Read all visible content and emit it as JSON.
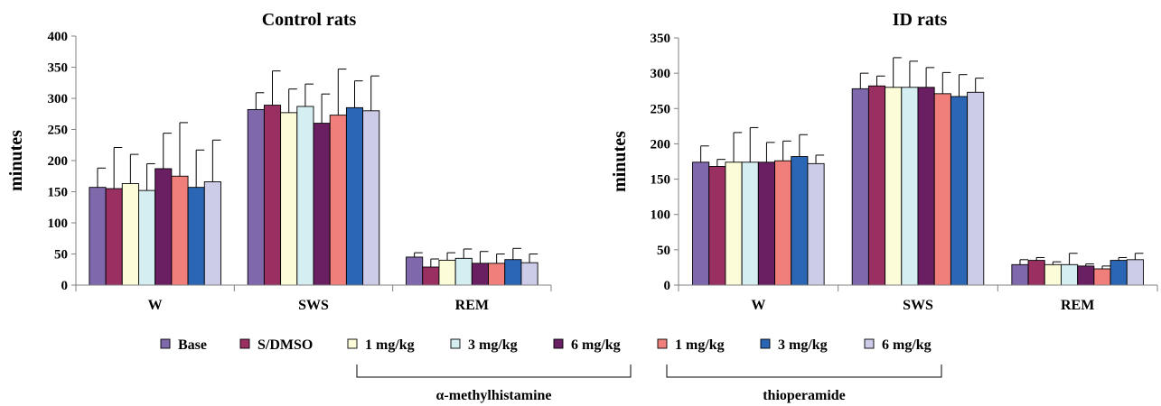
{
  "series_colors": [
    "#8068ac",
    "#9a2f62",
    "#fcfcd8",
    "#d5eef2",
    "#6a1f62",
    "#f07f7c",
    "#2a66b4",
    "#cccbe8"
  ],
  "legend": {
    "items": [
      "Base",
      "S/DMSO",
      "1 mg/kg",
      "3 mg/kg",
      "6 mg/kg",
      "1 mg/kg",
      "3 mg/kg",
      "6 mg/kg"
    ],
    "groups": [
      {
        "label": "α-methylhistamine",
        "from": 2,
        "to": 4
      },
      {
        "label": "thioperamide",
        "from": 5,
        "to": 7
      }
    ]
  },
  "chart_data": [
    {
      "type": "bar",
      "title": "Control rats",
      "ylabel": "minutes",
      "categories": [
        "W",
        "SWS",
        "REM"
      ],
      "ylim": [
        0,
        400
      ],
      "yticks": [
        0,
        50,
        100,
        150,
        200,
        250,
        300,
        350,
        400
      ],
      "series": [
        {
          "name": "Base",
          "values": [
            157,
            282,
            45
          ],
          "errors": [
            31,
            27,
            7
          ]
        },
        {
          "name": "S/DMSO",
          "values": [
            155,
            289,
            29
          ],
          "errors": [
            66,
            55,
            13
          ]
        },
        {
          "name": "1 mg/kg",
          "values": [
            163,
            277,
            40
          ],
          "errors": [
            47,
            38,
            12
          ]
        },
        {
          "name": "3 mg/kg",
          "values": [
            152,
            287,
            43
          ],
          "errors": [
            43,
            36,
            15
          ]
        },
        {
          "name": "6 mg/kg",
          "values": [
            187,
            260,
            35
          ],
          "errors": [
            57,
            47,
            19
          ]
        },
        {
          "name": "1 mg/kg",
          "values": [
            175,
            273,
            35
          ],
          "errors": [
            86,
            74,
            15
          ]
        },
        {
          "name": "3 mg/kg",
          "values": [
            157,
            285,
            41
          ],
          "errors": [
            60,
            43,
            18
          ]
        },
        {
          "name": "6 mg/kg",
          "values": [
            166,
            280,
            36
          ],
          "errors": [
            67,
            56,
            14
          ]
        }
      ]
    },
    {
      "type": "bar",
      "title": "ID rats",
      "ylabel": "minutes",
      "categories": [
        "W",
        "SWS",
        "REM"
      ],
      "ylim": [
        0,
        350
      ],
      "yticks": [
        0,
        50,
        100,
        150,
        200,
        250,
        300,
        350
      ],
      "series": [
        {
          "name": "Base",
          "values": [
            174,
            278,
            29
          ],
          "errors": [
            23,
            22,
            7
          ]
        },
        {
          "name": "S/DMSO",
          "values": [
            168,
            282,
            35
          ],
          "errors": [
            10,
            14,
            4
          ]
        },
        {
          "name": "1 mg/kg",
          "values": [
            174,
            280,
            29
          ],
          "errors": [
            42,
            42,
            4
          ]
        },
        {
          "name": "3 mg/kg",
          "values": [
            174,
            280,
            29
          ],
          "errors": [
            49,
            37,
            16
          ]
        },
        {
          "name": "6 mg/kg",
          "values": [
            174,
            280,
            27
          ],
          "errors": [
            28,
            28,
            3
          ]
        },
        {
          "name": "1 mg/kg",
          "values": [
            176,
            271,
            23
          ],
          "errors": [
            28,
            30,
            4
          ]
        },
        {
          "name": "3 mg/kg",
          "values": [
            182,
            267,
            35
          ],
          "errors": [
            31,
            31,
            4
          ]
        },
        {
          "name": "6 mg/kg",
          "values": [
            172,
            273,
            36
          ],
          "errors": [
            12,
            20,
            9
          ]
        }
      ]
    }
  ]
}
